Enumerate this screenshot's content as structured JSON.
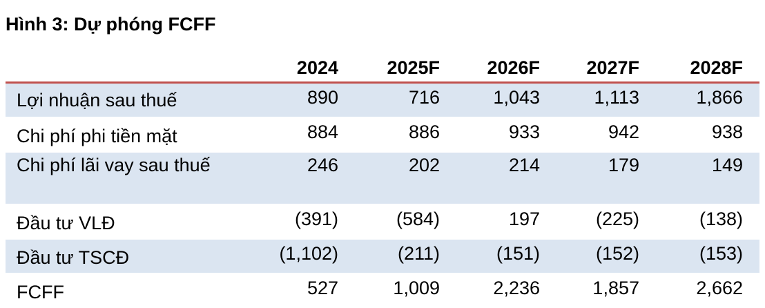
{
  "title": "Hình 3: Dự phóng FCFF",
  "columns": [
    "2024",
    "2025F",
    "2026F",
    "2027F",
    "2028F"
  ],
  "accent_color": "#c0504d",
  "shade_color": "#dbe5f1",
  "rows": [
    {
      "label": "Lợi nhuận sau thuế",
      "values": [
        "890",
        "716",
        "1,043",
        "1,113",
        "1,866"
      ]
    },
    {
      "label": "Chi phí phi tiền mặt",
      "values": [
        "884",
        "886",
        "933",
        "942",
        "938"
      ]
    },
    {
      "label": "Chi phí lãi vay sau thuế",
      "values": [
        "246",
        "202",
        "214",
        "179",
        "149"
      ]
    },
    {
      "label": "Đầu tư VLĐ",
      "values": [
        "(391)",
        "(584)",
        "197",
        "(225)",
        "(138)"
      ]
    },
    {
      "label": "Đầu tư TSCĐ",
      "values": [
        "(1,102)",
        "(211)",
        "(151)",
        "(152)",
        "(153)"
      ]
    },
    {
      "label": "FCFF",
      "values": [
        "527",
        "1,009",
        "2,236",
        "1,857",
        "2,662"
      ]
    }
  ]
}
